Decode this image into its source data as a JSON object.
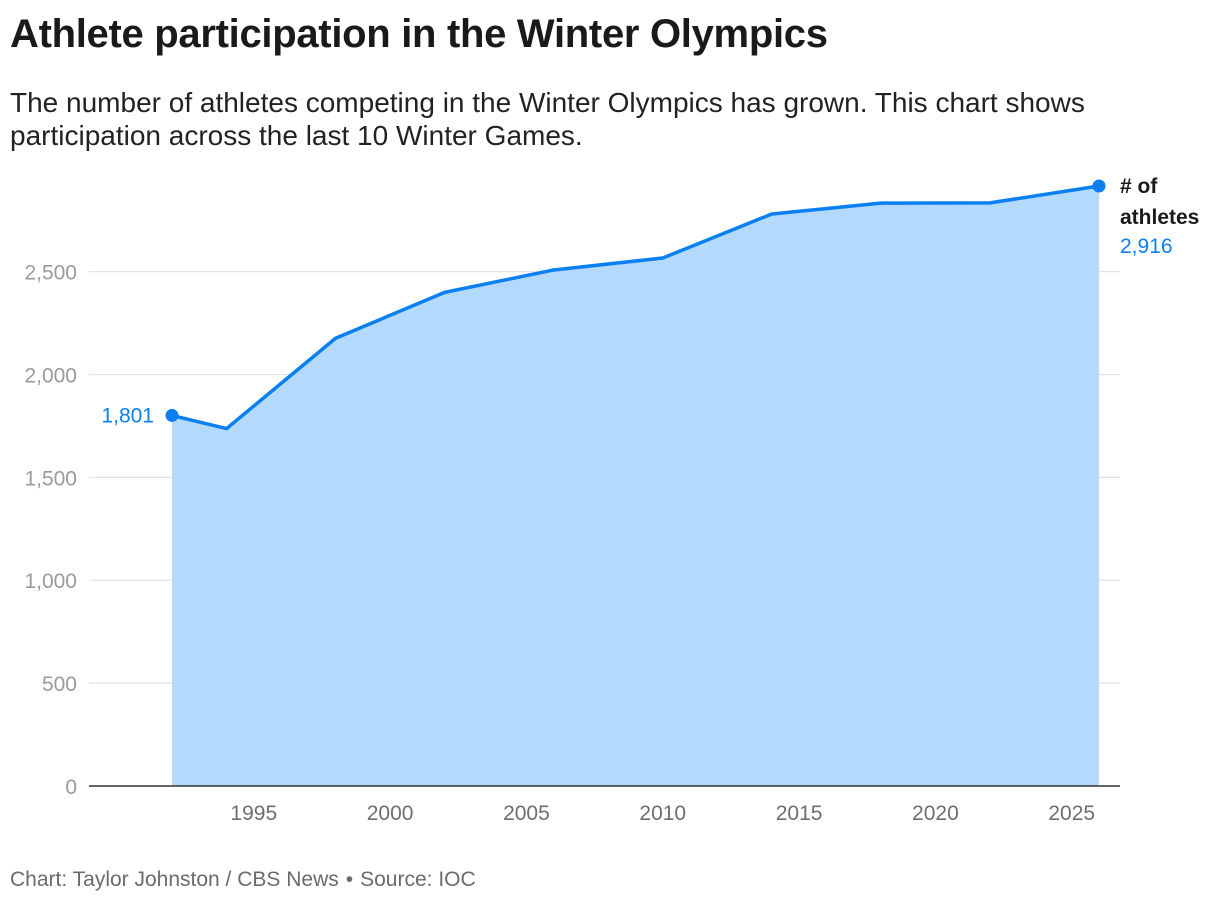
{
  "header": {
    "title": "Athlete participation in the Winter Olympics",
    "subtitle": "The number of athletes competing in the Winter Olympics has grown. This chart shows participation across the last 10 Winter Games."
  },
  "footer": {
    "credit": "Chart: Taylor Johnston / CBS News",
    "separator": "•",
    "source": "Source: IOC"
  },
  "chart_data": {
    "type": "area",
    "title": "Athlete participation in the Winter Olympics",
    "subtitle": "The number of athletes competing in the Winter Olympics has grown. This chart shows participation across the last 10 Winter Games.",
    "x": [
      1992,
      1994,
      1998,
      2002,
      2006,
      2010,
      2014,
      2018,
      2022,
      2026
    ],
    "series": [
      {
        "name": "# of athletes",
        "values": [
          1801,
          1737,
          2176,
          2399,
          2508,
          2566,
          2780,
          2833,
          2834,
          2916
        ],
        "color": "#0a7ff0",
        "fill": "#b3d9fc"
      }
    ],
    "xlim": [
      1987.1,
      2027.5
    ],
    "ylim": [
      0,
      2916
    ],
    "y_ticks": [
      0,
      500,
      1000,
      1500,
      2000,
      2500
    ],
    "y_tick_labels": [
      "0",
      "500",
      "1,000",
      "1,500",
      "2,000",
      "2,500"
    ],
    "x_ticks": [
      1995,
      2000,
      2005,
      2010,
      2015,
      2020,
      2025
    ],
    "x_tick_labels": [
      "1995",
      "2000",
      "2005",
      "2010",
      "2015",
      "2020",
      "2025"
    ],
    "annotations": [
      {
        "x": 1992,
        "y": 1801,
        "label": "1,801"
      },
      {
        "x": 2026,
        "y": 2916,
        "label": "2,916"
      }
    ],
    "series_label_lines": [
      "# of",
      "athletes"
    ],
    "grid": true,
    "legend": "none"
  }
}
